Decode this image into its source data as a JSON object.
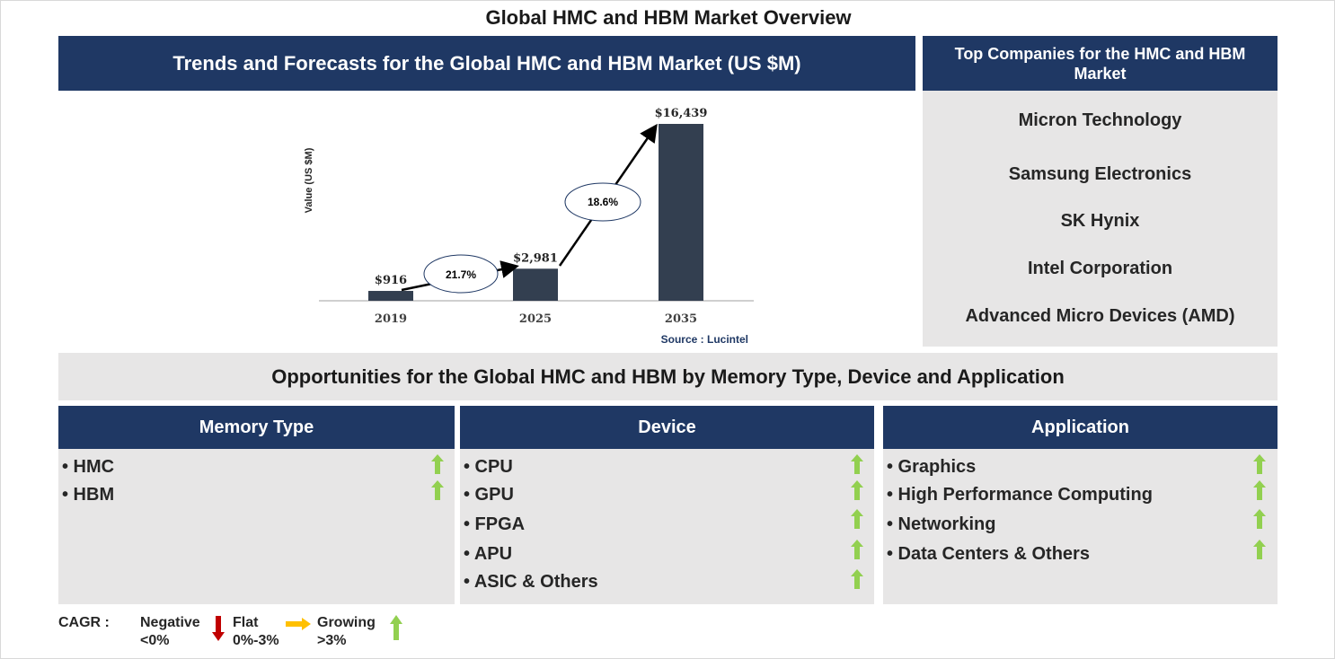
{
  "title": "Global HMC and HBM Market Overview",
  "trends_header": "Trends and Forecasts for the Global HMC and HBM Market (US $M)",
  "companies_header": "Top Companies for the HMC and HBM Market",
  "companies": [
    "Micron Technology",
    "Samsung Electronics",
    "SK Hynix",
    "Intel Corporation",
    "Advanced Micro Devices (AMD)"
  ],
  "chart_data": {
    "type": "bar",
    "categories": [
      "2019",
      "2025",
      "2035"
    ],
    "values": [
      916,
      2981,
      16439
    ],
    "value_labels": [
      "$916",
      "$2,981",
      "$16,439"
    ],
    "ylabel": "Value (US $M)",
    "cagr_labels": [
      "21.7%",
      "18.6%"
    ],
    "source": "Source : Lucintel",
    "bar_color": "#333f50"
  },
  "opportunities_header": "Opportunities for the Global HMC and HBM by Memory Type, Device and Application",
  "segments": [
    {
      "header": "Memory Type",
      "items": [
        "• HMC",
        "• HBM"
      ]
    },
    {
      "header": "Device",
      "items": [
        "• CPU",
        "• GPU",
        "• FPGA",
        "• APU",
        "• ASIC & Others"
      ]
    },
    {
      "header": "Application",
      "items": [
        "• Graphics",
        "• High Performance Computing",
        "• Networking",
        "• Data Centers & Others"
      ]
    }
  ],
  "legend": {
    "cagr_label": "CAGR :",
    "negative": "Negative",
    "negative_range": "<0%",
    "flat": "Flat",
    "flat_range": "0%-3%",
    "growing": "Growing",
    "growing_range": ">3%"
  },
  "colors": {
    "navy": "#1f3864",
    "panel_grey": "#e7e6e6",
    "growing_green": "#92d050",
    "negative_red": "#c00000",
    "flat_amber": "#ffc000"
  }
}
